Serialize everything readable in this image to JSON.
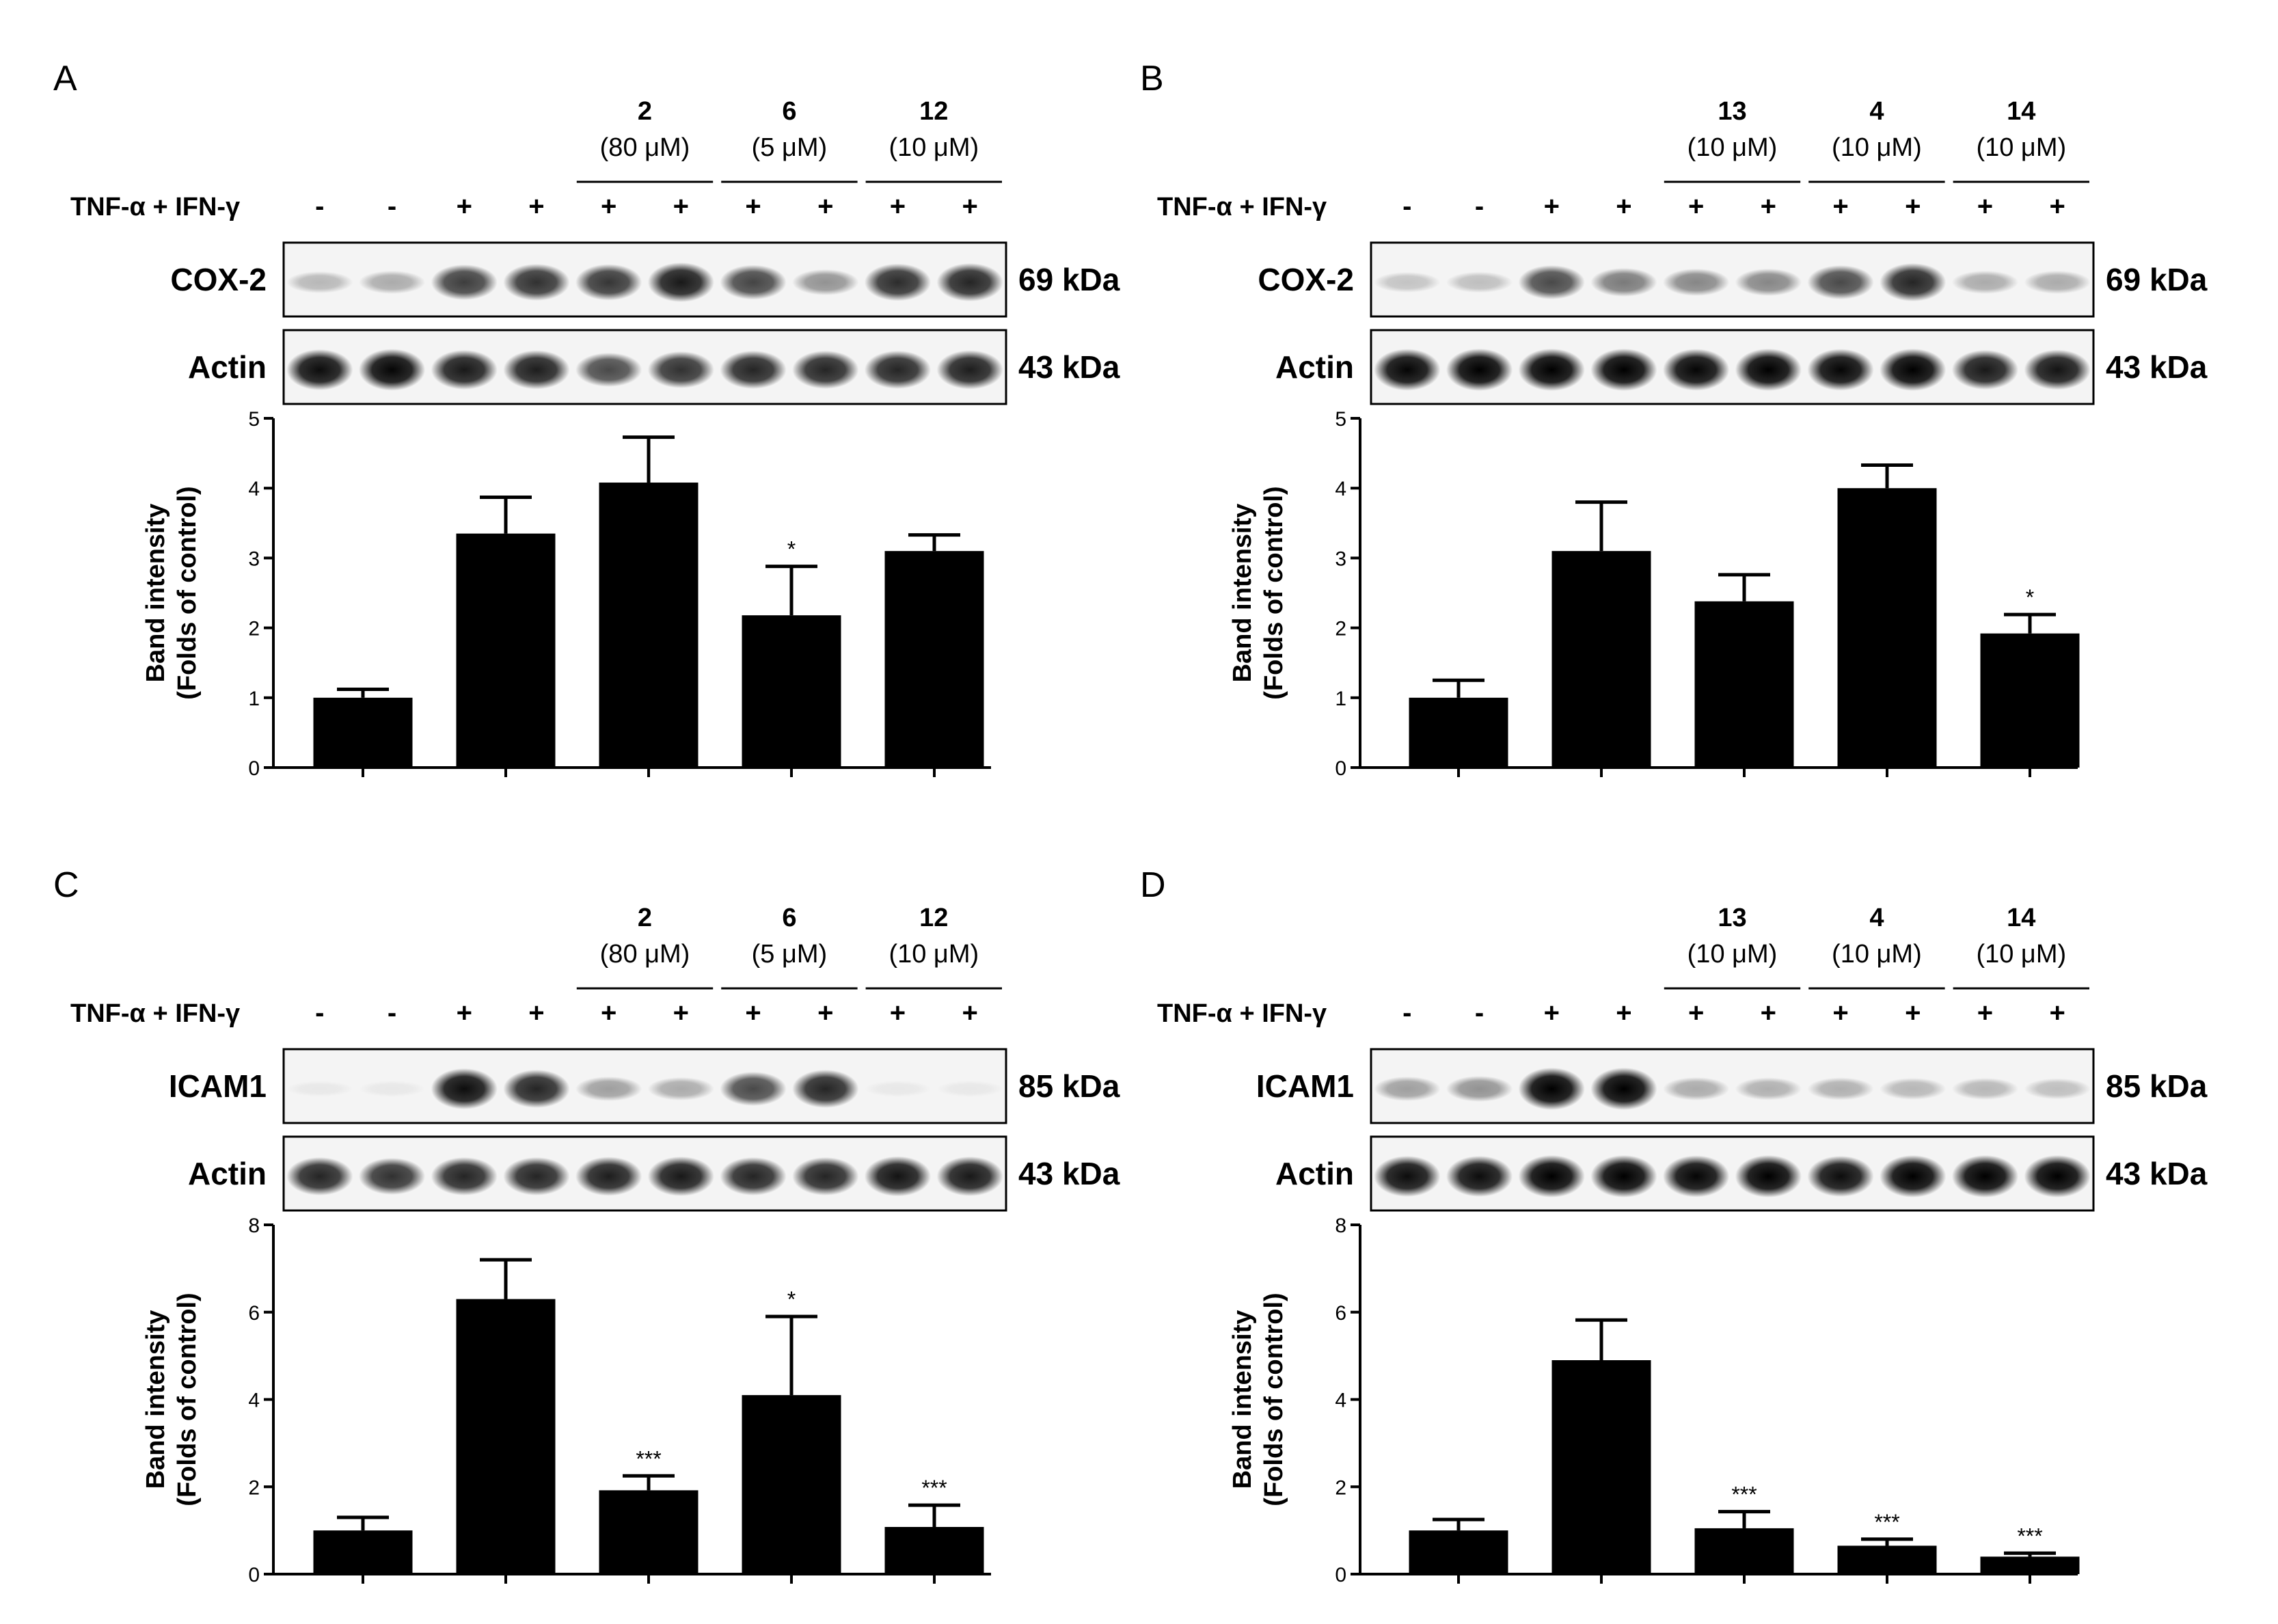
{
  "treatment_label": "TNF-α + IFN-γ",
  "y_label_line1": "Band intensity",
  "y_label_line2": "(Folds of control)",
  "panels": [
    {
      "letter": "A",
      "lanes": [
        "-",
        "-",
        "+",
        "+",
        "+",
        "+",
        "+",
        "+",
        "+",
        "+"
      ],
      "compounds": [
        {
          "name": "2",
          "conc": "(80 μM)"
        },
        {
          "name": "6",
          "conc": "(5 μM)"
        },
        {
          "name": "12",
          "conc": "(10 μM)"
        }
      ],
      "blots": [
        {
          "label": "COX-2",
          "size": "69 kDa",
          "intensity": [
            0.25,
            0.3,
            0.75,
            0.8,
            0.78,
            0.9,
            0.72,
            0.4,
            0.82,
            0.85
          ]
        },
        {
          "label": "Actin",
          "size": "43 kDa",
          "intensity": [
            0.95,
            0.98,
            0.9,
            0.88,
            0.7,
            0.8,
            0.85,
            0.85,
            0.85,
            0.88
          ]
        }
      ]
    },
    {
      "letter": "B",
      "lanes": [
        "-",
        "-",
        "+",
        "+",
        "+",
        "+",
        "+",
        "+",
        "+",
        "+"
      ],
      "compounds": [
        {
          "name": "13",
          "conc": "(10 μM)"
        },
        {
          "name": "4",
          "conc": "(10 μM)"
        },
        {
          "name": "14",
          "conc": "(10 μM)"
        }
      ],
      "blots": [
        {
          "label": "COX-2",
          "size": "69 kDa",
          "intensity": [
            0.2,
            0.22,
            0.7,
            0.5,
            0.45,
            0.45,
            0.7,
            0.85,
            0.3,
            0.3
          ]
        },
        {
          "label": "Actin",
          "size": "43 kDa",
          "intensity": [
            0.98,
            1.0,
            1.0,
            1.0,
            0.98,
            1.0,
            0.98,
            1.0,
            0.9,
            0.92
          ]
        }
      ]
    },
    {
      "letter": "C",
      "lanes": [
        "-",
        "-",
        "+",
        "+",
        "+",
        "+",
        "+",
        "+",
        "+",
        "+"
      ],
      "compounds": [
        {
          "name": "2",
          "conc": "(80 μM)"
        },
        {
          "name": "6",
          "conc": "(5 μM)"
        },
        {
          "name": "12",
          "conc": "(10 μM)"
        }
      ],
      "blots": [
        {
          "label": "ICAM1",
          "size": "85 kDa",
          "intensity": [
            0.03,
            0.05,
            0.95,
            0.85,
            0.35,
            0.3,
            0.7,
            0.85,
            0.05,
            0.05
          ]
        },
        {
          "label": "Actin",
          "size": "43 kDa",
          "intensity": [
            0.85,
            0.8,
            0.85,
            0.85,
            0.88,
            0.9,
            0.85,
            0.85,
            0.92,
            0.9
          ]
        }
      ]
    },
    {
      "letter": "D",
      "lanes": [
        "-",
        "-",
        "+",
        "+",
        "+",
        "+",
        "+",
        "+",
        "+",
        "+"
      ],
      "compounds": [
        {
          "name": "13",
          "conc": "(10 μM)"
        },
        {
          "name": "4",
          "conc": "(10 μM)"
        },
        {
          "name": "14",
          "conc": "(10 μM)"
        }
      ],
      "blots": [
        {
          "label": "ICAM1",
          "size": "85 kDa",
          "intensity": [
            0.35,
            0.4,
            1.0,
            1.0,
            0.3,
            0.28,
            0.28,
            0.25,
            0.25,
            0.22
          ]
        },
        {
          "label": "Actin",
          "size": "43 kDa",
          "intensity": [
            0.95,
            0.95,
            1.0,
            1.0,
            0.98,
            1.0,
            0.95,
            1.0,
            1.0,
            1.0
          ]
        }
      ]
    }
  ],
  "chart_data": [
    {
      "panel": "A",
      "type": "bar",
      "ylabel": "Band intensity (Folds of control)",
      "ylim": [
        0,
        5
      ],
      "yticks": [
        0,
        1,
        2,
        3,
        4,
        5
      ],
      "values": [
        1.0,
        3.35,
        4.08,
        2.18,
        3.1
      ],
      "errors": [
        0.12,
        0.52,
        0.65,
        0.7,
        0.23
      ],
      "significance": [
        "",
        "",
        "",
        "*",
        ""
      ]
    },
    {
      "panel": "B",
      "type": "bar",
      "ylabel": "Band intensity (Folds of control)",
      "ylim": [
        0,
        5
      ],
      "yticks": [
        0,
        1,
        2,
        3,
        4,
        5
      ],
      "values": [
        1.0,
        3.1,
        2.38,
        4.0,
        1.92
      ],
      "errors": [
        0.25,
        0.7,
        0.38,
        0.33,
        0.27
      ],
      "significance": [
        "",
        "",
        "",
        "",
        "*"
      ]
    },
    {
      "panel": "C",
      "type": "bar",
      "ylabel": "Band intensity (Folds of control)",
      "ylim": [
        0,
        8
      ],
      "yticks": [
        0,
        2,
        4,
        6,
        8
      ],
      "values": [
        1.0,
        6.3,
        1.92,
        4.1,
        1.08
      ],
      "errors": [
        0.3,
        0.9,
        0.33,
        1.8,
        0.5
      ],
      "significance": [
        "",
        "",
        "***",
        "*",
        "***"
      ]
    },
    {
      "panel": "D",
      "type": "bar",
      "ylabel": "Band intensity (Folds of control)",
      "ylim": [
        0,
        8
      ],
      "yticks": [
        0,
        2,
        4,
        6,
        8
      ],
      "values": [
        1.0,
        4.9,
        1.05,
        0.65,
        0.4
      ],
      "errors": [
        0.25,
        0.92,
        0.38,
        0.15,
        0.08
      ],
      "significance": [
        "",
        "",
        "***",
        "***",
        "***"
      ]
    }
  ]
}
